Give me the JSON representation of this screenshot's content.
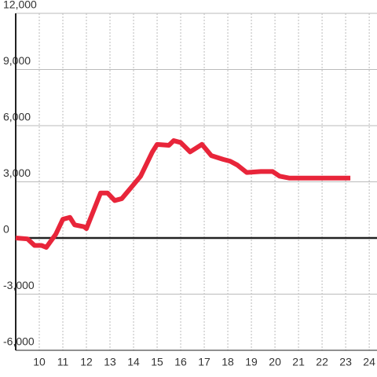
{
  "chart_data": {
    "type": "line",
    "x": [
      9.0,
      9.5,
      9.8,
      10.1,
      10.3,
      10.7,
      11.0,
      11.3,
      11.5,
      11.9,
      12.0,
      12.6,
      12.9,
      13.2,
      13.5,
      13.9,
      14.3,
      14.8,
      15.0,
      15.5,
      15.7,
      16.0,
      16.4,
      16.9,
      17.3,
      17.8,
      18.1,
      18.4,
      18.8,
      19.4,
      19.9,
      20.2,
      20.6,
      23.2
    ],
    "values": [
      0,
      -50,
      -400,
      -400,
      -500,
      200,
      1000,
      1100,
      700,
      600,
      500,
      2400,
      2400,
      2000,
      2100,
      2700,
      3300,
      4600,
      5000,
      4950,
      5200,
      5100,
      4600,
      5000,
      4400,
      4200,
      4100,
      3900,
      3500,
      3550,
      3550,
      3300,
      3200,
      3200
    ],
    "color": "#e8253a",
    "xlim": [
      9,
      24.33
    ],
    "xticks": [
      10,
      11,
      12,
      13,
      14,
      15,
      16,
      17,
      18,
      19,
      20,
      21,
      22,
      23,
      24
    ],
    "ylim": [
      -6000,
      12000
    ],
    "yticks": [
      {
        "value": -6000,
        "label": "-6,000"
      },
      {
        "value": -3000,
        "label": "-3,000"
      },
      0,
      {
        "value": 3000,
        "label": "3,000"
      },
      {
        "value": 6000,
        "label": "6,000"
      },
      {
        "value": 9000,
        "label": "9,000"
      },
      {
        "value": 12000,
        "label": "12,000"
      }
    ],
    "grid": true
  }
}
